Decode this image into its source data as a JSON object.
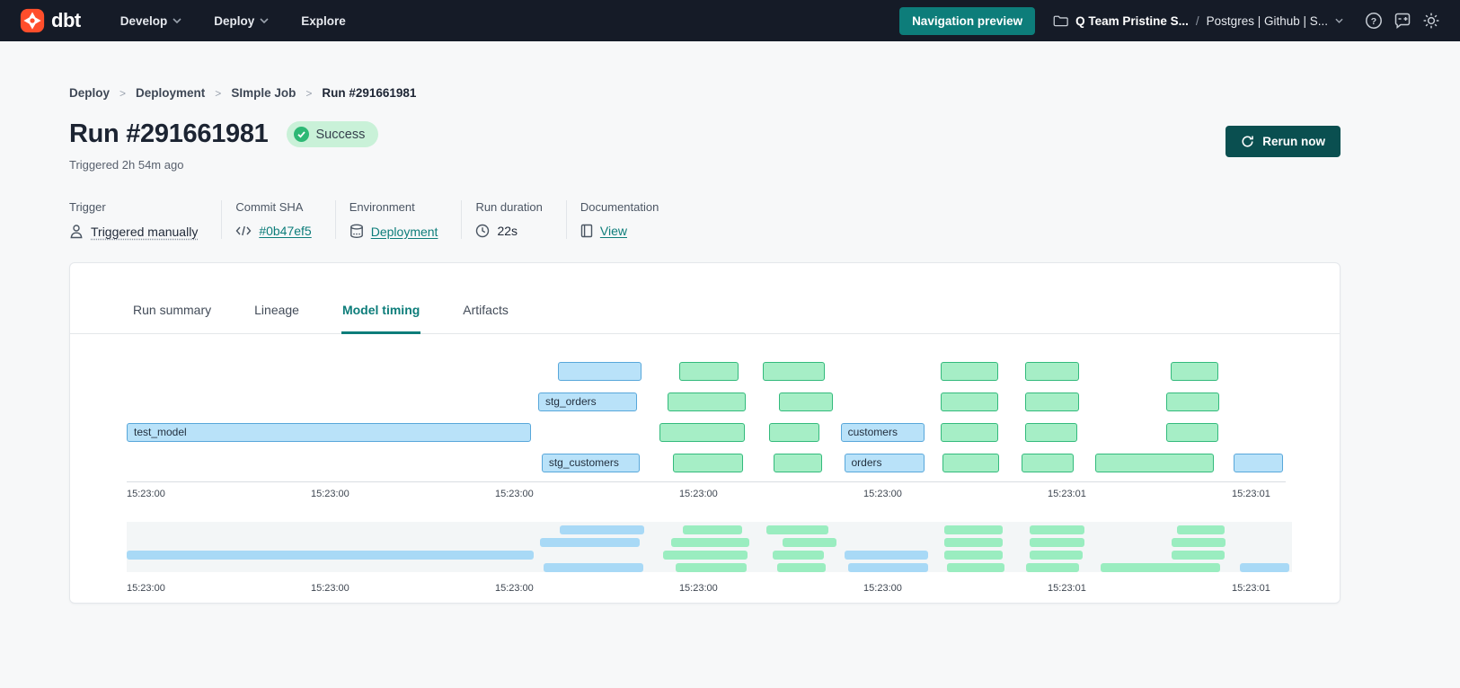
{
  "colors": {
    "nav_bg": "#151b27",
    "accent_teal": "#0d7d7a",
    "preview_btn_bg": "#11807c",
    "rerun_bg": "#0a4f50",
    "brand_orange": "#ff4e2b",
    "success_bg": "#c9f1d8",
    "success_check": "#2db875"
  },
  "nav": {
    "brand": "dbt",
    "menu_develop": "Develop",
    "menu_deploy": "Deploy",
    "menu_explore": "Explore",
    "preview_button": "Navigation preview",
    "project_name": "Q Team Pristine S...",
    "path_separator": "/",
    "env_name": "Postgres | Github | S..."
  },
  "breadcrumb": {
    "separator": ">",
    "items": [
      "Deploy",
      "Deployment",
      "SImple Job",
      "Run #291661981"
    ]
  },
  "header": {
    "title": "Run #291661981",
    "status_badge": "Success",
    "triggered_text": "Triggered 2h 54m ago",
    "rerun_button": "Rerun now"
  },
  "meta": {
    "trigger": {
      "label": "Trigger",
      "value": "Triggered manually"
    },
    "commit": {
      "label": "Commit SHA",
      "value": "#0b47ef5"
    },
    "environment": {
      "label": "Environment",
      "value": "Deployment"
    },
    "duration": {
      "label": "Run duration",
      "value": "22s"
    },
    "docs": {
      "label": "Documentation",
      "value": "View"
    }
  },
  "tabs": [
    {
      "label": "Run summary",
      "active": false
    },
    {
      "label": "Lineage",
      "active": false
    },
    {
      "label": "Model timing",
      "active": true
    },
    {
      "label": "Artifacts",
      "active": false
    }
  ],
  "chart_data": {
    "type": "gantt",
    "title": "Model timing",
    "rows": 4,
    "x_axis": {
      "labels": [
        "15:23:00",
        "15:23:00",
        "15:23:00",
        "15:23:00",
        "15:23:00",
        "15:23:01",
        "15:23:01"
      ],
      "positions": [
        0,
        0.1589,
        0.3178,
        0.4767,
        0.6357,
        0.7946,
        0.9535
      ]
    },
    "colors": {
      "blue_fill": "#b9e2f9",
      "blue_border": "#58a7da",
      "green_fill": "#a6eec6",
      "green_border": "#33ba7c",
      "mini_blue": "#a8d9f6",
      "mini_green": "#9aedc0"
    },
    "bars": [
      {
        "row": 0,
        "color": "blue",
        "x0": 0.372,
        "x1": 0.444,
        "label": ""
      },
      {
        "row": 0,
        "color": "green",
        "x0": 0.477,
        "x1": 0.528,
        "label": ""
      },
      {
        "row": 0,
        "color": "green",
        "x0": 0.549,
        "x1": 0.602,
        "label": ""
      },
      {
        "row": 0,
        "color": "green",
        "x0": 0.702,
        "x1": 0.752,
        "label": ""
      },
      {
        "row": 0,
        "color": "green",
        "x0": 0.775,
        "x1": 0.822,
        "label": ""
      },
      {
        "row": 0,
        "color": "green",
        "x0": 0.901,
        "x1": 0.942,
        "label": ""
      },
      {
        "row": 1,
        "color": "blue",
        "x0": 0.355,
        "x1": 0.44,
        "label": "stg_orders"
      },
      {
        "row": 1,
        "color": "green",
        "x0": 0.467,
        "x1": 0.534,
        "label": ""
      },
      {
        "row": 1,
        "color": "green",
        "x0": 0.563,
        "x1": 0.609,
        "label": ""
      },
      {
        "row": 1,
        "color": "green",
        "x0": 0.702,
        "x1": 0.752,
        "label": ""
      },
      {
        "row": 1,
        "color": "green",
        "x0": 0.775,
        "x1": 0.822,
        "label": ""
      },
      {
        "row": 1,
        "color": "green",
        "x0": 0.897,
        "x1": 0.943,
        "label": ""
      },
      {
        "row": 2,
        "color": "blue",
        "x0": 0.0,
        "x1": 0.349,
        "label": "test_model"
      },
      {
        "row": 2,
        "color": "green",
        "x0": 0.46,
        "x1": 0.533,
        "label": ""
      },
      {
        "row": 2,
        "color": "green",
        "x0": 0.554,
        "x1": 0.598,
        "label": ""
      },
      {
        "row": 2,
        "color": "blue",
        "x0": 0.616,
        "x1": 0.688,
        "label": "customers"
      },
      {
        "row": 2,
        "color": "green",
        "x0": 0.702,
        "x1": 0.752,
        "label": ""
      },
      {
        "row": 2,
        "color": "green",
        "x0": 0.775,
        "x1": 0.82,
        "label": ""
      },
      {
        "row": 2,
        "color": "green",
        "x0": 0.897,
        "x1": 0.942,
        "label": ""
      },
      {
        "row": 3,
        "color": "blue",
        "x0": 0.358,
        "x1": 0.443,
        "label": "stg_customers"
      },
      {
        "row": 3,
        "color": "green",
        "x0": 0.471,
        "x1": 0.532,
        "label": ""
      },
      {
        "row": 3,
        "color": "green",
        "x0": 0.558,
        "x1": 0.6,
        "label": ""
      },
      {
        "row": 3,
        "color": "blue",
        "x0": 0.619,
        "x1": 0.688,
        "label": "orders"
      },
      {
        "row": 3,
        "color": "green",
        "x0": 0.704,
        "x1": 0.753,
        "label": ""
      },
      {
        "row": 3,
        "color": "green",
        "x0": 0.772,
        "x1": 0.817,
        "label": ""
      },
      {
        "row": 3,
        "color": "green",
        "x0": 0.836,
        "x1": 0.938,
        "label": ""
      },
      {
        "row": 3,
        "color": "blue",
        "x0": 0.955,
        "x1": 0.998,
        "label": ""
      }
    ]
  }
}
